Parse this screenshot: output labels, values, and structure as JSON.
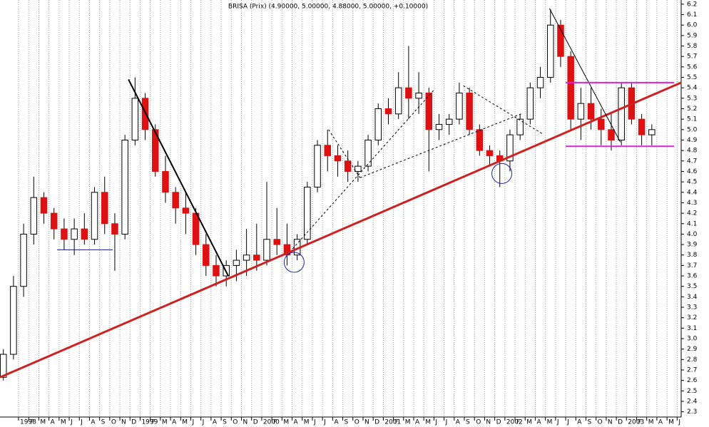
{
  "chart_data": {
    "type": "candlestick",
    "title": "BRISA (Prix) (4.90000, 5.00000, 4.88000, 5.00000, +0.10000)",
    "x": [
      -1.5,
      -0.5,
      0.5,
      1.5,
      2.5,
      3.5,
      4.5,
      5.5,
      6.5,
      7.5,
      8.5,
      9.5,
      10.5,
      11.5,
      12.5,
      13.5,
      14.5,
      15.5,
      16.5,
      17.5,
      18.5,
      19.5,
      20.5,
      21.5,
      22.5,
      23.5,
      24.5,
      25.5,
      26.5,
      27.5,
      28.5,
      29.5,
      30.5,
      31.5,
      32.5,
      33.5,
      34.5,
      35.5,
      36.5,
      37.5,
      38.5,
      39.5,
      40.5,
      41.5,
      42.5,
      43.5,
      44.5,
      45.5,
      46.5,
      47.5,
      48.5,
      49.5,
      50.5,
      51.5,
      52.5,
      53.5,
      54.5,
      55.5,
      56.5,
      57.5,
      58.5,
      59.5,
      60.5,
      61.5,
      62.5
    ],
    "open": [
      2.63,
      2.85,
      3.5,
      4.0,
      4.35,
      4.2,
      4.05,
      3.95,
      4.05,
      3.95,
      4.4,
      4.1,
      4.0,
      4.9,
      5.3,
      5.0,
      4.6,
      4.4,
      4.25,
      4.2,
      3.9,
      3.7,
      3.6,
      3.7,
      3.75,
      3.8,
      3.75,
      3.95,
      3.9,
      3.8,
      3.95,
      4.45,
      4.85,
      4.75,
      4.7,
      4.6,
      4.65,
      4.9,
      5.2,
      5.15,
      5.4,
      5.3,
      5.35,
      5.0,
      5.05,
      5.1,
      5.35,
      5.0,
      4.8,
      4.75,
      4.7,
      4.95,
      5.1,
      5.4,
      5.5,
      6.0,
      5.7,
      5.1,
      5.25,
      5.1,
      5.0,
      4.9,
      5.4,
      5.1,
      4.95
    ],
    "high": [
      2.9,
      3.6,
      4.1,
      4.55,
      4.4,
      4.25,
      4.15,
      4.15,
      4.2,
      4.45,
      4.55,
      4.2,
      4.95,
      5.5,
      5.35,
      5.05,
      4.75,
      4.45,
      4.4,
      4.25,
      4.0,
      3.8,
      3.75,
      3.85,
      4.05,
      4.1,
      4.5,
      4.25,
      4.1,
      4.0,
      4.5,
      4.9,
      5.0,
      4.85,
      4.8,
      4.7,
      4.95,
      5.25,
      5.3,
      5.55,
      5.8,
      5.55,
      5.4,
      5.15,
      5.15,
      5.45,
      5.4,
      5.05,
      4.85,
      4.8,
      5.0,
      5.15,
      5.45,
      5.6,
      6.15,
      6.05,
      5.75,
      5.4,
      5.4,
      5.2,
      5.15,
      5.45,
      5.45,
      5.15,
      5.05
    ],
    "low": [
      2.6,
      2.8,
      3.4,
      3.9,
      4.1,
      3.95,
      3.85,
      3.8,
      3.9,
      3.9,
      4.0,
      3.65,
      3.95,
      4.85,
      4.9,
      4.55,
      4.3,
      4.1,
      4.0,
      3.8,
      3.6,
      3.5,
      3.5,
      3.55,
      3.6,
      3.65,
      3.7,
      3.8,
      3.7,
      3.75,
      3.9,
      4.4,
      4.6,
      4.55,
      4.5,
      4.5,
      4.6,
      4.85,
      5.05,
      5.1,
      5.1,
      5.15,
      4.6,
      4.9,
      4.95,
      5.05,
      4.95,
      4.75,
      4.65,
      4.45,
      4.6,
      4.9,
      5.05,
      5.3,
      5.45,
      5.6,
      5.0,
      4.9,
      5.0,
      4.85,
      4.8,
      4.85,
      5.05,
      4.85,
      4.85
    ],
    "close": [
      2.85,
      3.5,
      4.0,
      4.35,
      4.2,
      4.05,
      3.95,
      4.05,
      3.95,
      4.4,
      4.1,
      4.0,
      4.9,
      5.3,
      5.0,
      4.6,
      4.4,
      4.25,
      4.2,
      3.9,
      3.7,
      3.6,
      3.7,
      3.75,
      3.8,
      3.75,
      3.95,
      3.9,
      3.8,
      3.95,
      4.45,
      4.85,
      4.75,
      4.7,
      4.6,
      4.65,
      4.9,
      5.2,
      5.15,
      5.4,
      5.3,
      5.35,
      5.0,
      5.05,
      5.1,
      5.35,
      5.0,
      4.8,
      4.75,
      4.7,
      4.95,
      5.1,
      5.4,
      5.5,
      6.0,
      5.7,
      5.1,
      5.25,
      5.1,
      5.0,
      4.9,
      5.4,
      5.1,
      4.95,
      5.0
    ],
    "up_color": "#ffffff",
    "down_color": "#dd1111",
    "xlim": [
      -1.83,
      65.4
    ],
    "ylim": [
      2.25,
      6.24
    ],
    "grid": "x",
    "yticks": [
      2.3,
      2.4,
      2.5,
      2.6,
      2.7,
      2.8,
      2.9,
      {
        "value": 3,
        "label": "3.0"
      },
      3.1,
      3.2,
      3.3,
      3.4,
      3.5,
      3.6,
      3.7,
      3.8,
      3.9,
      {
        "value": 4,
        "label": "4.0"
      },
      4.1,
      4.2,
      4.3,
      4.4,
      4.5,
      4.6,
      4.7,
      4.8,
      4.9,
      {
        "value": 5,
        "label": "5.0"
      },
      5.1,
      5.2,
      5.3,
      5.4,
      5.5,
      5.6,
      5.7,
      5.8,
      5.9,
      {
        "value": 6,
        "label": "6.0"
      },
      6.1,
      6.2
    ],
    "xticks": [
      {
        "value": 0,
        "label": "1998"
      },
      {
        "value": 1,
        "label": "F"
      },
      {
        "value": 2,
        "label": "M"
      },
      {
        "value": 3,
        "label": "A"
      },
      {
        "value": 4,
        "label": "M"
      },
      {
        "value": 5,
        "label": "J"
      },
      {
        "value": 6,
        "label": "J"
      },
      {
        "value": 7,
        "label": "A"
      },
      {
        "value": 8,
        "label": "S"
      },
      {
        "value": 9,
        "label": "O"
      },
      {
        "value": 10,
        "label": "N"
      },
      {
        "value": 11,
        "label": "D"
      },
      {
        "value": 12,
        "label": "1999"
      },
      {
        "value": 13,
        "label": "F"
      },
      {
        "value": 14,
        "label": "M"
      },
      {
        "value": 15,
        "label": "A"
      },
      {
        "value": 16,
        "label": "M"
      },
      {
        "value": 17,
        "label": "J"
      },
      {
        "value": 18,
        "label": "J"
      },
      {
        "value": 19,
        "label": "A"
      },
      {
        "value": 20,
        "label": "S"
      },
      {
        "value": 21,
        "label": "O"
      },
      {
        "value": 22,
        "label": "N"
      },
      {
        "value": 23,
        "label": "D"
      },
      {
        "value": 24,
        "label": "2000"
      },
      {
        "value": 25,
        "label": "F"
      },
      {
        "value": 26,
        "label": "M"
      },
      {
        "value": 27,
        "label": "A"
      },
      {
        "value": 28,
        "label": "M"
      },
      {
        "value": 29,
        "label": "J"
      },
      {
        "value": 30,
        "label": "J"
      },
      {
        "value": 31,
        "label": "A"
      },
      {
        "value": 32,
        "label": "S"
      },
      {
        "value": 33,
        "label": "O"
      },
      {
        "value": 34,
        "label": "N"
      },
      {
        "value": 35,
        "label": "D"
      },
      {
        "value": 36,
        "label": "2001"
      },
      {
        "value": 37,
        "label": "F"
      },
      {
        "value": 38,
        "label": "M"
      },
      {
        "value": 39,
        "label": "A"
      },
      {
        "value": 40,
        "label": "M"
      },
      {
        "value": 41,
        "label": "J"
      },
      {
        "value": 42,
        "label": "J"
      },
      {
        "value": 43,
        "label": "A"
      },
      {
        "value": 44,
        "label": "S"
      },
      {
        "value": 45,
        "label": "O"
      },
      {
        "value": 46,
        "label": "N"
      },
      {
        "value": 47,
        "label": "D"
      },
      {
        "value": 48,
        "label": "2002"
      },
      {
        "value": 49,
        "label": "F"
      },
      {
        "value": 50,
        "label": "M"
      },
      {
        "value": 51,
        "label": "A"
      },
      {
        "value": 52,
        "label": "M"
      },
      {
        "value": 53,
        "label": "J"
      },
      {
        "value": 54,
        "label": "J"
      },
      {
        "value": 55,
        "label": "A"
      },
      {
        "value": 56,
        "label": "S"
      },
      {
        "value": 57,
        "label": "O"
      },
      {
        "value": 58,
        "label": "N"
      },
      {
        "value": 59,
        "label": "D"
      },
      {
        "value": 60,
        "label": "2003"
      },
      {
        "value": 61,
        "label": "F"
      },
      {
        "value": 62,
        "label": "M"
      },
      {
        "value": 63,
        "label": "A"
      },
      {
        "value": 64,
        "label": "M"
      },
      {
        "value": 65,
        "label": "J"
      }
    ],
    "trendlines": [
      {
        "color": "#cc2222",
        "width": 3,
        "dash": false,
        "x": [
          -1.83,
          65.4
        ],
        "y": [
          2.63,
          5.45
        ]
      },
      {
        "color": "#000000",
        "width": 2,
        "dash": false,
        "x": [
          10.85,
          20.7
        ],
        "y": [
          5.48,
          3.6
        ]
      },
      {
        "color": "#000000",
        "width": 1,
        "dash": false,
        "x": [
          52.4,
          59.4
        ],
        "y": [
          6.16,
          4.88
        ]
      },
      {
        "color": "#1a1a8c",
        "width": 1,
        "dash": false,
        "x": [
          3.8,
          9.3
        ],
        "y": [
          3.85,
          3.85
        ]
      },
      {
        "color": "#dd22dd",
        "width": 2,
        "dash": false,
        "x": [
          54,
          64.7
        ],
        "y": [
          5.45,
          5.45
        ]
      },
      {
        "color": "#dd22dd",
        "width": 2,
        "dash": false,
        "x": [
          54,
          64.7
        ],
        "y": [
          4.84,
          4.84
        ]
      },
      {
        "color": "#000000",
        "width": 1,
        "dash": true,
        "x": [
          27.05,
          41.1
        ],
        "y": [
          3.86,
          5.39
        ]
      },
      {
        "color": "#000000",
        "width": 1,
        "dash": true,
        "x": [
          30.6,
          33.7
        ],
        "y": [
          5.0,
          4.54
        ]
      },
      {
        "color": "#000000",
        "width": 1,
        "dash": true,
        "x": [
          33.7,
          49.6
        ],
        "y": [
          4.54,
          5.15
        ]
      },
      {
        "color": "#000000",
        "width": 1,
        "dash": true,
        "x": [
          43.9,
          51.7
        ],
        "y": [
          5.42,
          4.96
        ]
      }
    ],
    "circles": [
      {
        "color": "#2222aa",
        "x": 27.2,
        "y": 3.73
      },
      {
        "color": "#2222aa",
        "x": 47.7,
        "y": 4.58
      }
    ]
  }
}
